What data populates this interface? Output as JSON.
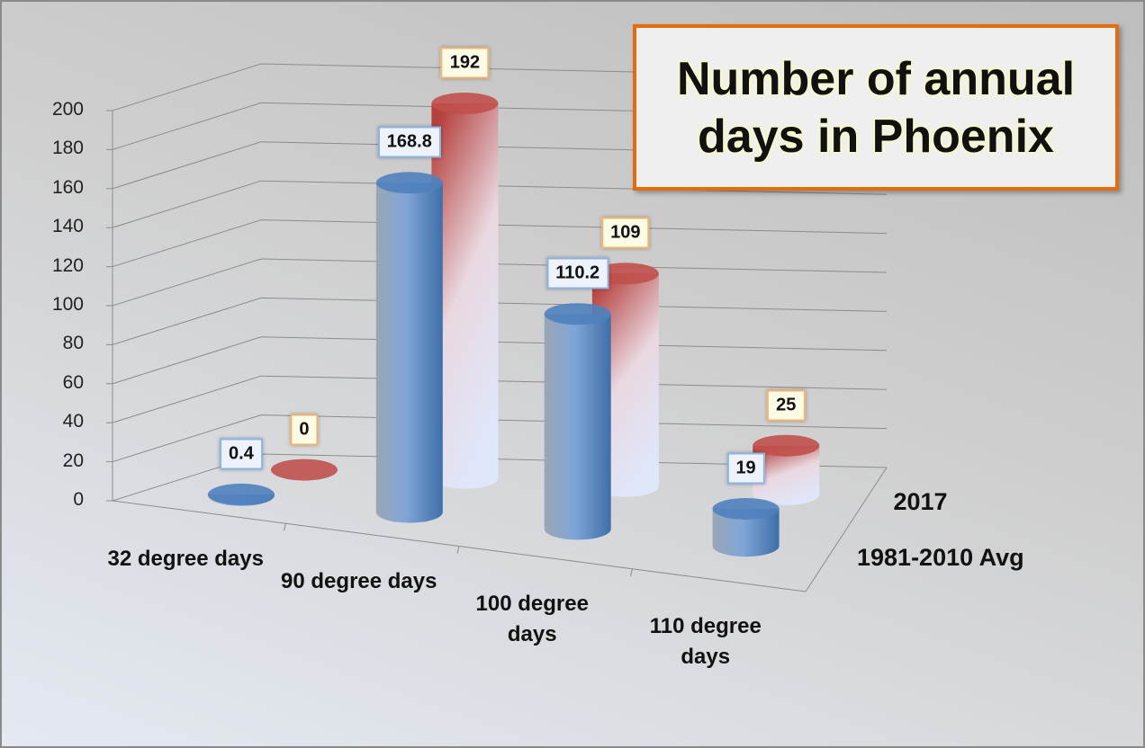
{
  "chart_data": {
    "type": "bar3d",
    "title": "Number of annual days in Phoenix",
    "categories": [
      "32 degree days",
      "90 degree days",
      "100 degree days",
      "110 degree days"
    ],
    "series": [
      {
        "name": "1981-2010 Avg",
        "color": "#4f81bd",
        "values": [
          0.4,
          168.8,
          110.2,
          19
        ]
      },
      {
        "name": "2017",
        "color": "#c0504d",
        "values": [
          0,
          192,
          109,
          25
        ]
      }
    ],
    "ylim": [
      0,
      200
    ],
    "yticks": [
      0,
      20,
      40,
      60,
      80,
      100,
      120,
      140,
      160,
      180,
      200
    ],
    "grid": true
  }
}
